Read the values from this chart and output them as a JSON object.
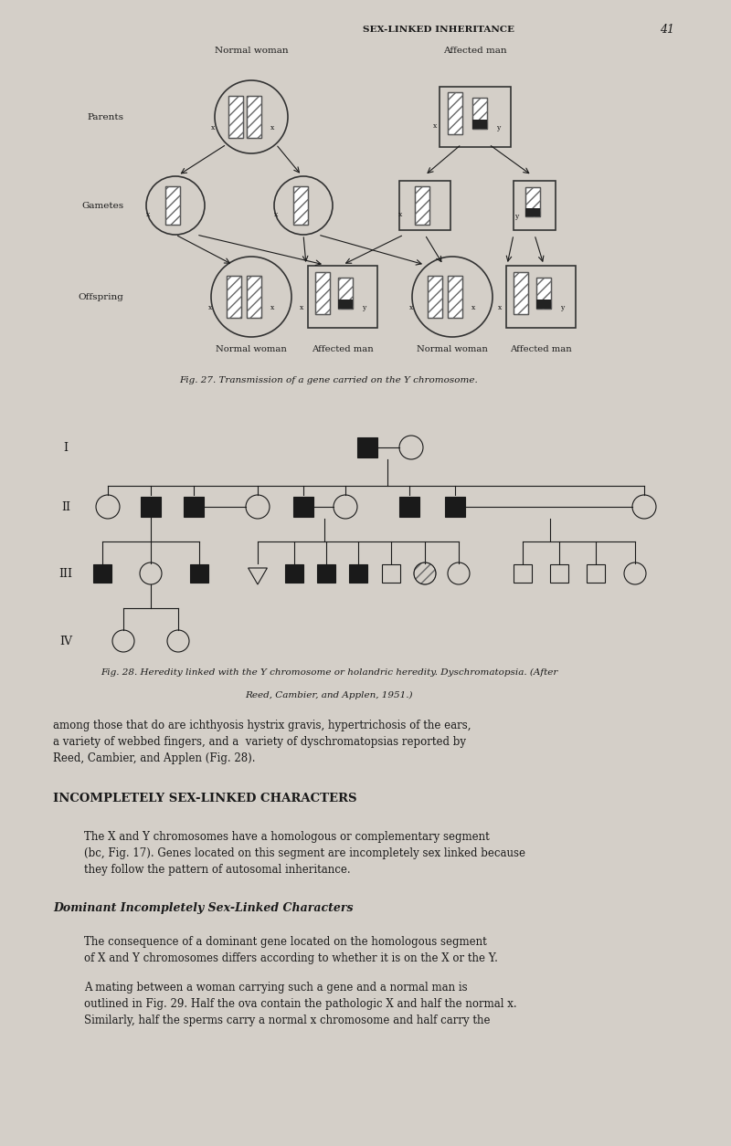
{
  "bg_color": "#d4cfc8",
  "page_width": 8.0,
  "page_height": 12.55,
  "header_text": "SEX-LINKED INHERITANCE",
  "header_page_num": "41",
  "fig27_caption": "Fig. 27. Transmission of a gene carried on the Y chromosome.",
  "fig28_caption1": "Fig. 28. Heredity linked with the Y chromosome or holandric heredity. Dyschromatopsia. (After",
  "fig28_caption2": "Reed, Cambier, and Applen, 1951.)",
  "section_heading": "INCOMPLETELY SEX-LINKED CHARACTERS",
  "para1": "The X and Y chromosomes have a homologous or complementary segment\n(bc, Fig. 17). Genes located on this segment are incompletely sex linked because\nthey follow the pattern of autosomal inheritance.",
  "subheading": "Dominant Incompletely Sex-Linked Characters",
  "para2": "The consequence of a dominant gene located on the homologous segment\nof X and Y chromosomes differs according to whether it is on the X or the Y.",
  "para3": "A mating between a woman carrying such a gene and a normal man is\noutlined in Fig. 29. Half the ova contain the pathologic X and half the normal x.\nSimilarly, half the sperms carry a normal x chromosome and half carry the",
  "body_pre": "among those that do are ichthyosis hystrix gravis, hypertrichosis of the ears,\na variety of webbed fingers, and a  variety of dyschromatopsias reported by\nReed, Cambier, and Applen (Fig. 28).",
  "fig27_label_parents": "Parents",
  "fig27_label_gametes": "Gametes",
  "fig27_label_offspring": "Offspring",
  "fig27_label_nw1": "Normal woman",
  "fig27_label_am1": "Affected man",
  "fig27_label_nw2": "Normal woman",
  "fig27_label_am2": "Affected man",
  "fig27_label_nw3": "Normal woman",
  "fig27_label_am3": "Affected man",
  "text_color": "#1a1a1a"
}
